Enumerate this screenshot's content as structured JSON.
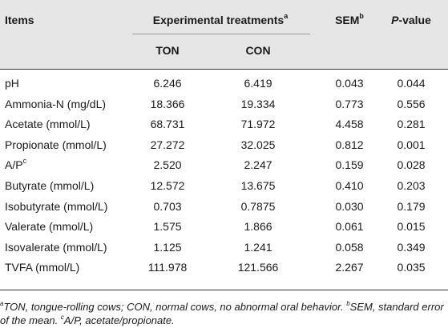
{
  "header": {
    "items": "Items",
    "group_label": "Experimental treatments",
    "group_sup": "a",
    "sem": "SEM",
    "sem_sup": "b",
    "pvalue": "P",
    "pvalue_suffix": "-value",
    "ton": "TON",
    "con": "CON"
  },
  "rows": [
    {
      "item": "pH",
      "sup": "",
      "ton": "6.246",
      "con": "6.419",
      "sem": "0.043",
      "p": "0.044"
    },
    {
      "item": "Ammonia-N (mg/dL)",
      "sup": "",
      "ton": "18.366",
      "con": "19.334",
      "sem": "0.773",
      "p": "0.556"
    },
    {
      "item": "Acetate (mmol/L)",
      "sup": "",
      "ton": "68.731",
      "con": "71.972",
      "sem": "4.458",
      "p": "0.281"
    },
    {
      "item": "Propionate (mmol/L)",
      "sup": "",
      "ton": "27.272",
      "con": "32.025",
      "sem": "0.812",
      "p": "0.001"
    },
    {
      "item": "A/P",
      "sup": "c",
      "ton": "2.520",
      "con": "2.247",
      "sem": "0.159",
      "p": "0.028"
    },
    {
      "item": "Butyrate (mmol/L)",
      "sup": "",
      "ton": "12.572",
      "con": "13.675",
      "sem": "0.410",
      "p": "0.203"
    },
    {
      "item": "Isobutyrate (mmol/L)",
      "sup": "",
      "ton": "0.703",
      "con": "0.7875",
      "sem": "0.030",
      "p": "0.179"
    },
    {
      "item": "Valerate (mmol/L)",
      "sup": "",
      "ton": "1.575",
      "con": "1.866",
      "sem": "0.061",
      "p": "0.015"
    },
    {
      "item": "Isovalerate (mmol/L)",
      "sup": "",
      "ton": "1.125",
      "con": "1.241",
      "sem": "0.058",
      "p": "0.349"
    },
    {
      "item": "TVFA (mmol/L)",
      "sup": "",
      "ton": "111.978",
      "con": "121.566",
      "sem": "2.267",
      "p": "0.035"
    }
  ],
  "footnotes": {
    "a_sup": "a",
    "a_text": "TON, tongue-rolling cows; CON, normal cows, no abnormal oral behavior.",
    "b_sup": "b",
    "b_text": "SEM, standard error of the mean.",
    "c_sup": "c",
    "c_text": "A/P, acetate/propionate."
  },
  "colors": {
    "header_band": "#e6e6e6",
    "rule": "#999999",
    "strong_rule": "#333333",
    "text": "#1a1a1a"
  }
}
